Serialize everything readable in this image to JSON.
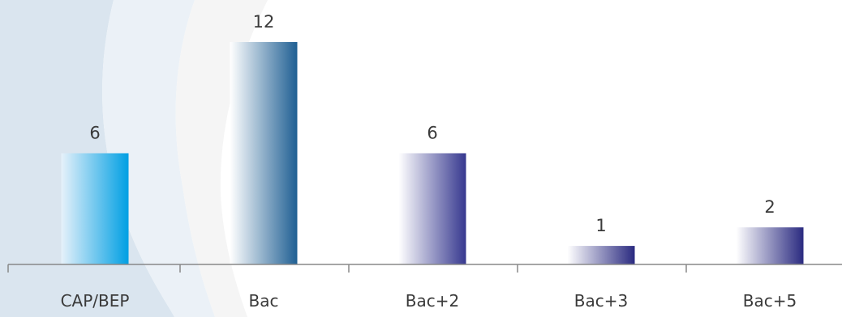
{
  "chart_data": {
    "type": "bar",
    "categories": [
      "CAP/BEP",
      "Bac",
      "Bac+2",
      "Bac+3",
      "Bac+5"
    ],
    "values": [
      6,
      12,
      6,
      1,
      2
    ],
    "value_labels": [
      "6",
      "12",
      "6",
      "1",
      "2"
    ],
    "title": "",
    "xlabel": "",
    "ylabel": "",
    "ylim": [
      0,
      12
    ],
    "grid": false,
    "legend": "none",
    "bar_gradients": [
      [
        "#e6f1fa",
        "#009fe3"
      ],
      [
        "#ffffff",
        "#1f5f93"
      ],
      [
        "#ffffff",
        "#36388f"
      ],
      [
        "#ffffff",
        "#2a2a80"
      ],
      [
        "#ffffff",
        "#2a2a80"
      ]
    ],
    "colors": {
      "axis": "#888888",
      "text": "#3a3a3a",
      "decor_shape_1": "#d3e1ec",
      "decor_shape_2": "#e9f0f6",
      "decor_shape_3": "#f4f4f4"
    }
  }
}
